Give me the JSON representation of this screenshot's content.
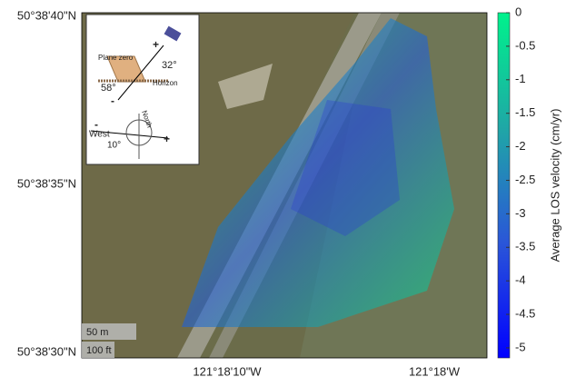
{
  "map": {
    "lat_labels": [
      "50°38'40\"N",
      "50°38'35\"N",
      "50°38'30\"N"
    ],
    "lon_labels": [
      "121°18'10\"W",
      "121°18'W"
    ],
    "scale_bar": [
      "50 m",
      "100 ft"
    ],
    "inset": {
      "plane": "Plane zero",
      "horizon": "Horizon",
      "incidence": "32°",
      "tilt": "58°",
      "north": "North",
      "west": "West",
      "heading": "10°",
      "plus1": "+",
      "minus1": "-",
      "plus2": "+",
      "minus2": "-"
    }
  },
  "colorbar": {
    "label": "Average LOS velocity (cm/yr)",
    "lim": [
      -5.15,
      0
    ],
    "ticks": [
      0,
      -0.5,
      -1,
      -1.5,
      -2,
      -2.5,
      -3,
      -3.5,
      -4,
      -4.5,
      -5
    ],
    "colors": [
      "#00f28c",
      "#1fa7a6",
      "#2a56d8",
      "#0000ff"
    ]
  }
}
